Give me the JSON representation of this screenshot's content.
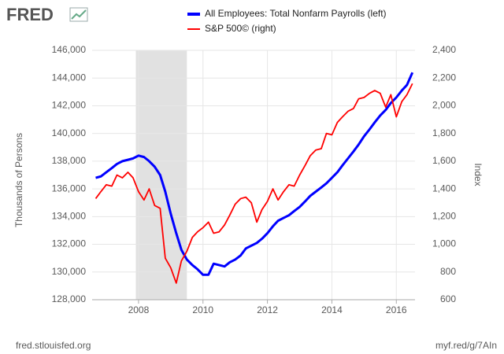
{
  "logo": "FRED",
  "footer": {
    "left": "fred.stlouisfed.org",
    "right": "myf.red/g/7AIn"
  },
  "chart_data": {
    "type": "line",
    "ylabel": "Thousands of Persons",
    "y2label": "Index",
    "recession": [
      2007.917,
      2009.5
    ],
    "x": [
      2006.67,
      2006.83,
      2007.0,
      2007.17,
      2007.33,
      2007.5,
      2007.67,
      2007.83,
      2008.0,
      2008.17,
      2008.33,
      2008.5,
      2008.67,
      2008.83,
      2009.0,
      2009.17,
      2009.33,
      2009.5,
      2009.67,
      2009.83,
      2010.0,
      2010.17,
      2010.33,
      2010.5,
      2010.67,
      2010.83,
      2011.0,
      2011.17,
      2011.33,
      2011.5,
      2011.67,
      2011.83,
      2012.0,
      2012.17,
      2012.33,
      2012.5,
      2012.67,
      2012.83,
      2013.0,
      2013.17,
      2013.33,
      2013.5,
      2013.67,
      2013.83,
      2014.0,
      2014.17,
      2014.33,
      2014.5,
      2014.67,
      2014.83,
      2015.0,
      2015.17,
      2015.33,
      2015.5,
      2015.67,
      2015.83,
      2016.0,
      2016.17,
      2016.33,
      2016.5
    ],
    "series": [
      {
        "name": "All Employees: Total Nonfarm Payrolls (left)",
        "color": "#0000ff",
        "axis": "y",
        "values": [
          136800,
          136900,
          137200,
          137500,
          137800,
          138000,
          138100,
          138200,
          138400,
          138300,
          138000,
          137600,
          137000,
          135800,
          134200,
          132800,
          131600,
          130900,
          130500,
          130200,
          129800,
          129800,
          130600,
          130500,
          130400,
          130700,
          130900,
          131200,
          131700,
          131900,
          132100,
          132400,
          132800,
          133300,
          133700,
          133900,
          134100,
          134400,
          134700,
          135100,
          135500,
          135800,
          136100,
          136400,
          136800,
          137200,
          137700,
          138200,
          138700,
          139200,
          139800,
          140300,
          140800,
          141300,
          141700,
          142200,
          142600,
          143100,
          143500,
          144400
        ]
      },
      {
        "name": "S&P 500© (right)",
        "color": "#ff0000",
        "axis": "y2",
        "values": [
          1330,
          1380,
          1430,
          1420,
          1500,
          1480,
          1520,
          1480,
          1380,
          1320,
          1400,
          1280,
          1260,
          900,
          830,
          720,
          880,
          950,
          1050,
          1090,
          1120,
          1160,
          1080,
          1090,
          1140,
          1210,
          1290,
          1330,
          1340,
          1300,
          1160,
          1250,
          1310,
          1400,
          1320,
          1380,
          1430,
          1420,
          1500,
          1570,
          1640,
          1680,
          1690,
          1800,
          1790,
          1880,
          1920,
          1960,
          1980,
          2050,
          2060,
          2090,
          2110,
          2090,
          1990,
          2080,
          1920,
          2030,
          2080,
          2160
        ]
      }
    ],
    "xlim": [
      2006.56,
      2016.58
    ],
    "xticks": [
      2008,
      2010,
      2012,
      2014,
      2016
    ],
    "ylim": [
      128000,
      146000
    ],
    "yticks": [
      {
        "value": 128000,
        "label": "128,000"
      },
      {
        "value": 130000,
        "label": "130,000"
      },
      {
        "value": 132000,
        "label": "132,000"
      },
      {
        "value": 134000,
        "label": "134,000"
      },
      {
        "value": 136000,
        "label": "136,000"
      },
      {
        "value": 138000,
        "label": "138,000"
      },
      {
        "value": 140000,
        "label": "140,000"
      },
      {
        "value": 142000,
        "label": "142,000"
      },
      {
        "value": 144000,
        "label": "144,000"
      },
      {
        "value": 146000,
        "label": "146,000"
      }
    ],
    "y2lim": [
      600,
      2400
    ],
    "y2ticks": [
      600,
      800,
      {
        "value": 1000,
        "label": "1,000"
      },
      {
        "value": 1200,
        "label": "1,200"
      },
      {
        "value": 1400,
        "label": "1,400"
      },
      {
        "value": 1600,
        "label": "1,600"
      },
      {
        "value": 1800,
        "label": "1,800"
      },
      {
        "value": 2000,
        "label": "2,000"
      },
      {
        "value": 2200,
        "label": "2,200"
      },
      {
        "value": 2400,
        "label": "2,400"
      }
    ],
    "grid": true
  }
}
